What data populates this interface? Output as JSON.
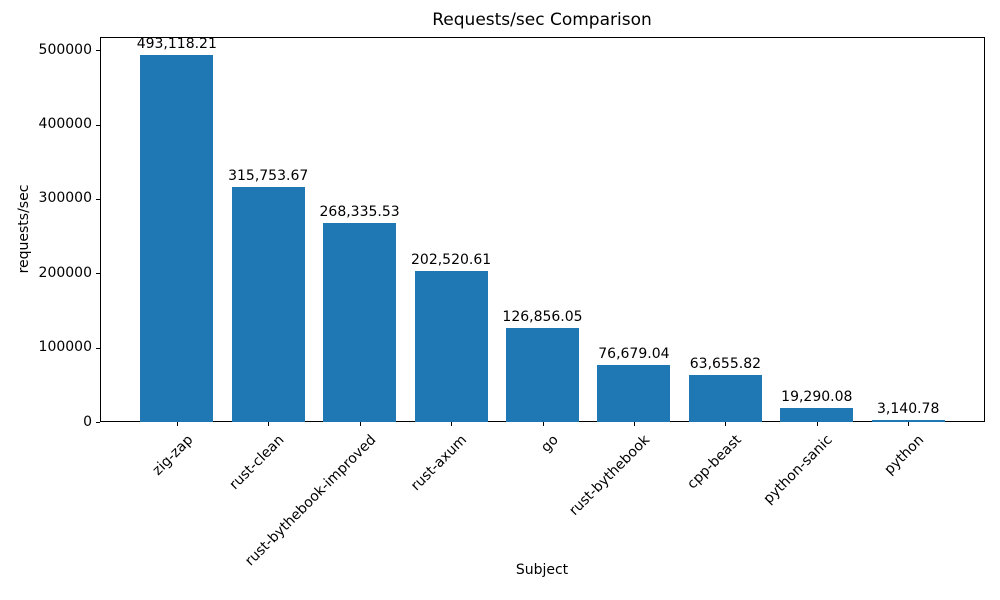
{
  "chart_data": {
    "type": "bar",
    "title": "Requests/sec Comparison",
    "xlabel": "Subject",
    "ylabel": "requests/sec",
    "categories": [
      "zig-zap",
      "rust-clean",
      "rust-bythebook-improved",
      "rust-axum",
      "go",
      "rust-bythebook",
      "cpp-beast",
      "python-sanic",
      "python"
    ],
    "values": [
      493118.21,
      315753.67,
      268335.53,
      202520.61,
      126856.05,
      76679.04,
      63655.82,
      19290.08,
      3140.78
    ],
    "value_labels": [
      "493,118.21",
      "315,753.67",
      "268,335.53",
      "202,520.61",
      "126,856.05",
      "76,679.04",
      "63,655.82",
      "19,290.08",
      "3,140.78"
    ],
    "yticks": [
      0,
      100000,
      200000,
      300000,
      400000,
      500000
    ],
    "ytick_labels": [
      "0",
      "100000",
      "200000",
      "300000",
      "400000",
      "500000"
    ],
    "ylim": [
      0,
      517774
    ],
    "bar_color": "#1f77b4",
    "background_color": "#ffffff",
    "spine_color": "#000000",
    "grid": false,
    "legend": "none",
    "x_tick_rotation_deg": 45
  }
}
